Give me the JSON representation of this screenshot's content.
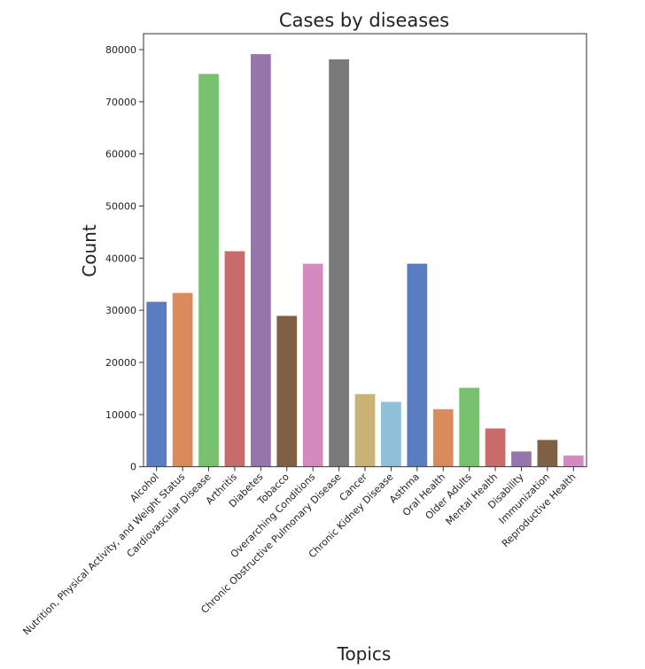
{
  "chart_data": {
    "type": "bar",
    "title": "Cases by diseases",
    "xlabel": "Topics",
    "ylabel": "Count",
    "ylim": [
      0,
      83000
    ],
    "yticks": [
      0,
      10000,
      20000,
      30000,
      40000,
      50000,
      60000,
      70000,
      80000
    ],
    "grid": false,
    "categories": [
      "Alcohol",
      "Nutrition, Physical Activity, and Weight Status",
      "Cardiovascular Disease",
      "Arthritis",
      "Diabetes",
      "Tobacco",
      "Overarching Conditions",
      "Chronic Obstructive Pulmonary Disease",
      "Cancer",
      "Chronic Kidney Disease",
      "Asthma",
      "Oral Health",
      "Older Adults",
      "Mental Health",
      "Disability",
      "Immunization",
      "Reproductive Health"
    ],
    "values": [
      31700,
      33400,
      75400,
      41400,
      79200,
      29000,
      39000,
      78200,
      14000,
      12500,
      39000,
      11100,
      15200,
      7400,
      3000,
      5200,
      2200
    ],
    "colors": [
      "#5a7dc1",
      "#db8a5e",
      "#77c16f",
      "#c96b6b",
      "#9675ad",
      "#7f6045",
      "#d48abf",
      "#7a7a7a",
      "#c8b374",
      "#8fc0d8",
      "#5a7dc1",
      "#db8a5e",
      "#77c16f",
      "#c96b6b",
      "#9675ad",
      "#7f6045",
      "#d48abf"
    ]
  }
}
